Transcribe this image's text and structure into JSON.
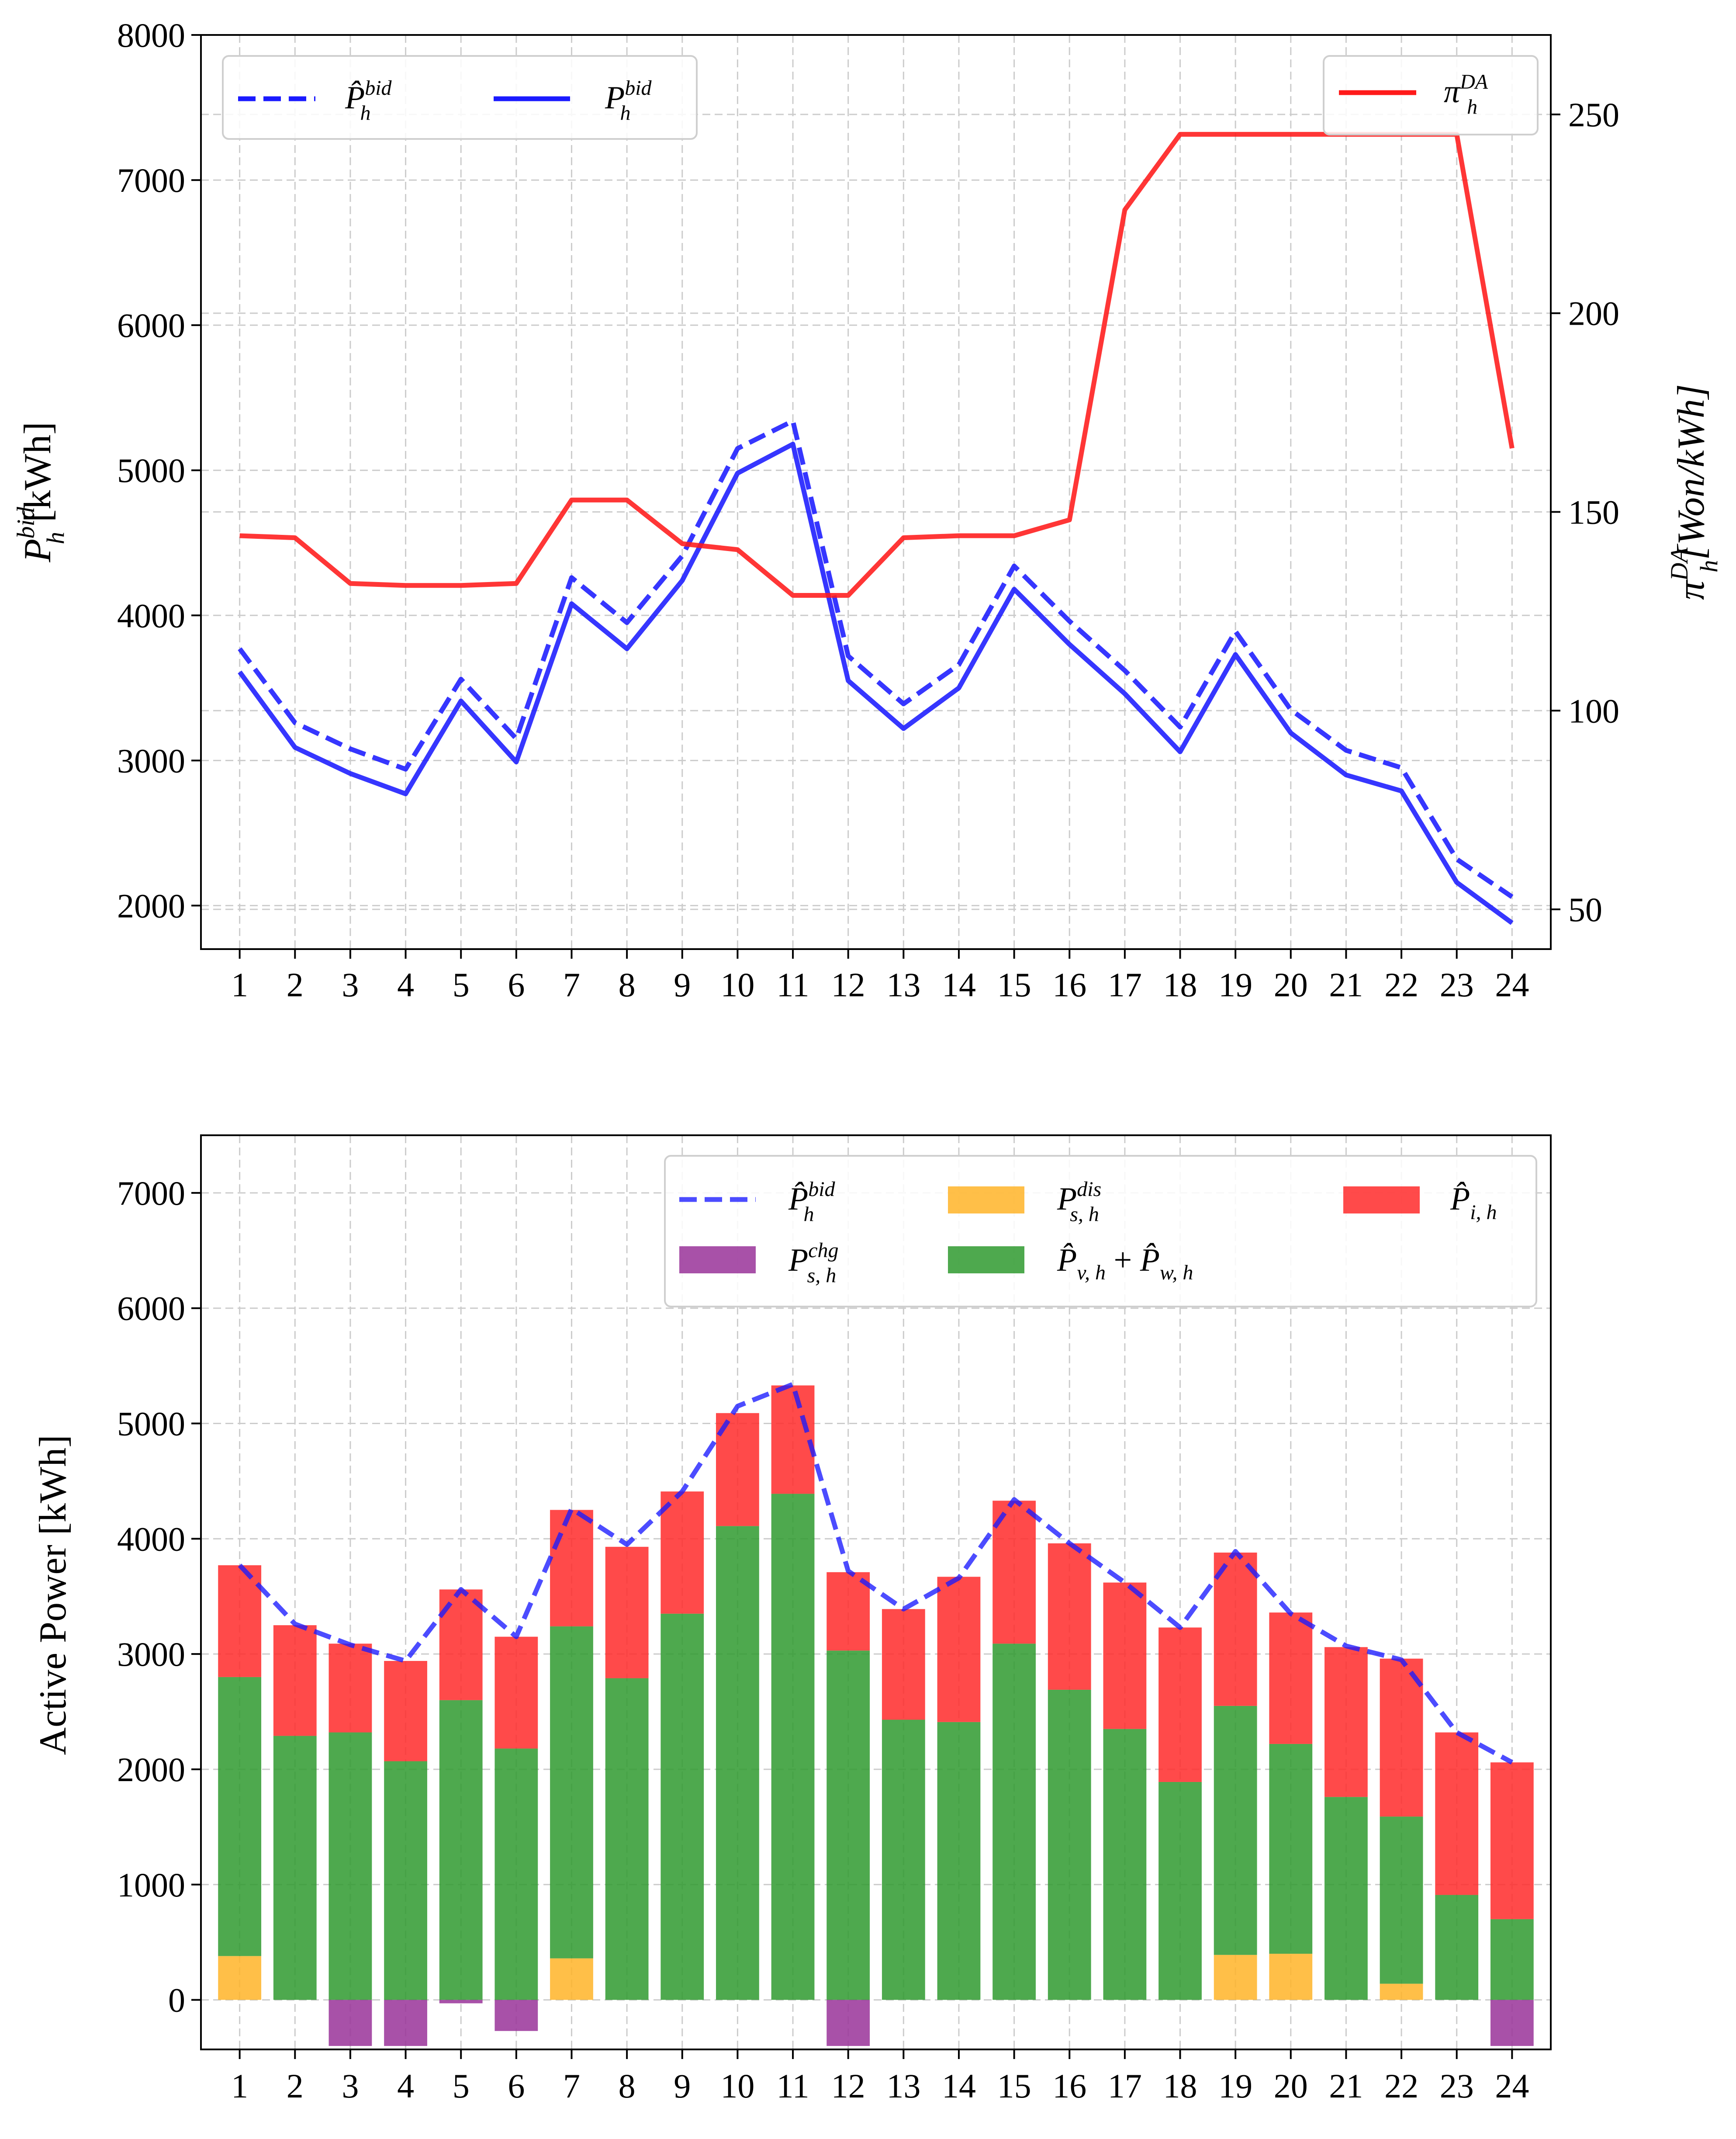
{
  "chart_data": [
    {
      "type": "line",
      "x": [
        1,
        2,
        3,
        4,
        5,
        6,
        7,
        8,
        9,
        10,
        11,
        12,
        13,
        14,
        15,
        16,
        17,
        18,
        19,
        20,
        21,
        22,
        23,
        24
      ],
      "xlim": [
        0.3,
        24.7
      ],
      "ylim_left": [
        1700,
        8000
      ],
      "ylim_right": [
        40,
        270
      ],
      "yticks_left": [
        2000,
        3000,
        4000,
        5000,
        6000,
        7000,
        8000
      ],
      "yticks_right": [
        50,
        100,
        150,
        200,
        250
      ],
      "ylabel_left": {
        "base": "P",
        "sup": "bid",
        "sub": "h",
        "unit": " [kWh]"
      },
      "ylabel_right": {
        "base": "π",
        "sup": "DA",
        "sub": "h",
        "unit": "[Won/kWh]"
      },
      "grid": true,
      "series": [
        {
          "name": {
            "base": "P̂",
            "sup": "bid",
            "sub": "h"
          },
          "style": "dashed",
          "color": "#1a1aff",
          "axis": "left",
          "values": [
            3770,
            3260,
            3080,
            2940,
            3560,
            3150,
            4260,
            3950,
            4410,
            5150,
            5340,
            3720,
            3390,
            3660,
            4340,
            3960,
            3620,
            3230,
            3890,
            3350,
            3070,
            2950,
            2320,
            2060
          ]
        },
        {
          "name": {
            "base": "P",
            "sup": "bid",
            "sub": "h"
          },
          "style": "solid",
          "color": "#1a1aff",
          "axis": "left",
          "values": [
            3610,
            3090,
            2910,
            2770,
            3410,
            2990,
            4080,
            3770,
            4240,
            4980,
            5180,
            3550,
            3220,
            3500,
            4180,
            3800,
            3460,
            3060,
            3730,
            3190,
            2900,
            2790,
            2160,
            1880
          ]
        },
        {
          "name": {
            "base": "π",
            "sup": "DA",
            "sub": "h"
          },
          "style": "solid",
          "color": "#ff1a1a",
          "axis": "right",
          "values": [
            144,
            143.5,
            132,
            131.5,
            131.5,
            132,
            153,
            153,
            142,
            140.5,
            129,
            129,
            143.5,
            144,
            144,
            148,
            226,
            245,
            245,
            245,
            245,
            245,
            245,
            166
          ]
        }
      ],
      "legend_left": "top-left",
      "legend_right": "top-right"
    },
    {
      "type": "bar",
      "stacked": true,
      "x": [
        1,
        2,
        3,
        4,
        5,
        6,
        7,
        8,
        9,
        10,
        11,
        12,
        13,
        14,
        15,
        16,
        17,
        18,
        19,
        20,
        21,
        22,
        23,
        24
      ],
      "xlim": [
        0.3,
        24.7
      ],
      "ylim": [
        -430,
        7500
      ],
      "yticks": [
        0,
        1000,
        2000,
        3000,
        4000,
        5000,
        6000,
        7000
      ],
      "ylabel": "Active Power  [kWh]",
      "grid": true,
      "legend": "top-right",
      "series": [
        {
          "key": "chg",
          "name": {
            "base": "P",
            "sup": "chg",
            "sub": "s, h"
          },
          "color": "#993399",
          "values": [
            0,
            0,
            -400,
            -400,
            -30,
            -270,
            0,
            0,
            0,
            0,
            0,
            -400,
            0,
            0,
            0,
            0,
            0,
            0,
            0,
            0,
            0,
            0,
            0,
            -400
          ]
        },
        {
          "key": "dis",
          "name": {
            "base": "P",
            "sup": "dis",
            "sub": "s, h"
          },
          "color": "#ffb428",
          "values": [
            380,
            0,
            0,
            0,
            0,
            0,
            360,
            0,
            0,
            0,
            0,
            0,
            0,
            0,
            0,
            0,
            0,
            0,
            390,
            400,
            0,
            140,
            0,
            0
          ]
        },
        {
          "key": "pvw",
          "name": {
            "a": "P̂",
            "asub": "v, h",
            "op": " + ",
            "b": "P̂",
            "bsub": "w, h"
          },
          "color": "#2f9a2f",
          "values": [
            2420,
            2290,
            2320,
            2070,
            2600,
            2180,
            2880,
            2790,
            3350,
            4110,
            4390,
            3030,
            2430,
            2410,
            3090,
            2690,
            2350,
            1890,
            2160,
            1820,
            1760,
            1450,
            910,
            700
          ]
        },
        {
          "key": "imb",
          "name": {
            "base": "P̂",
            "sub": "i, h"
          },
          "color": "#ff2a2a",
          "values": [
            970,
            960,
            770,
            870,
            960,
            970,
            1010,
            1140,
            1060,
            980,
            940,
            680,
            960,
            1260,
            1240,
            1270,
            1270,
            1340,
            1330,
            1140,
            1300,
            1370,
            1410,
            1360
          ]
        }
      ],
      "line": {
        "name": {
          "base": "P̂",
          "sup": "bid",
          "sub": "h"
        },
        "style": "dashed",
        "color": "#1a1aff",
        "values": [
          3770,
          3260,
          3080,
          2940,
          3560,
          3150,
          4260,
          3950,
          4410,
          5150,
          5340,
          3720,
          3390,
          3660,
          4340,
          3960,
          3620,
          3230,
          3890,
          3350,
          3070,
          2950,
          2320,
          2060
        ]
      }
    }
  ]
}
